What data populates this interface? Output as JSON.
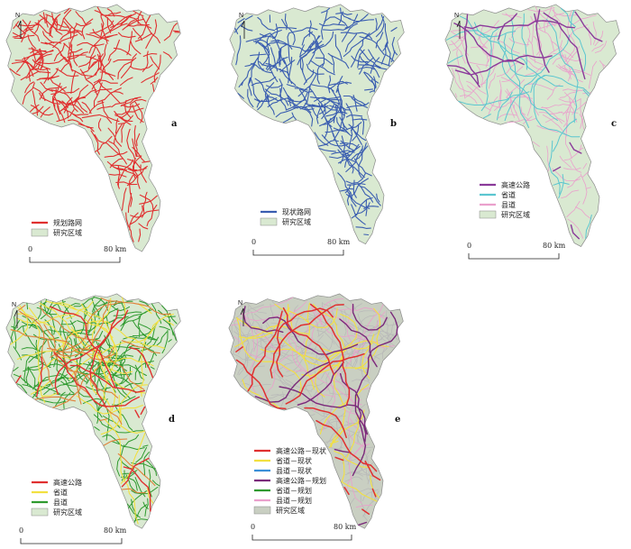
{
  "colors": {
    "region_fill": "#d9e9d1",
    "region_stroke": "#8c8c8c",
    "gray_region_fill": "#c9cfc2"
  },
  "panels": [
    {
      "id": "a",
      "letter": "a",
      "north": "N",
      "scale": {
        "zero": "0",
        "end": "80 km"
      },
      "legend": [
        {
          "kind": "line",
          "color": "#e03030",
          "label": "规划路网"
        },
        {
          "kind": "patch",
          "color": "#d9e9d1",
          "label": "研究区域"
        }
      ],
      "network": [
        {
          "color": "#e03030",
          "density": 1.0,
          "width": 1.1
        }
      ]
    },
    {
      "id": "b",
      "letter": "b",
      "north": "N",
      "scale": {
        "zero": "0",
        "end": "80 km"
      },
      "legend": [
        {
          "kind": "line",
          "color": "#3a5db0",
          "label": "现状路网"
        },
        {
          "kind": "patch",
          "color": "#d9e9d1",
          "label": "研究区域"
        }
      ],
      "network": [
        {
          "color": "#3a5db0",
          "density": 1.0,
          "width": 1.1
        }
      ]
    },
    {
      "id": "c",
      "letter": "c",
      "north": "N",
      "scale": {
        "zero": "0",
        "end": "80 km"
      },
      "legend": [
        {
          "kind": "line",
          "color": "#8a3a9a",
          "label": "高速公路"
        },
        {
          "kind": "line",
          "color": "#5bc6d0",
          "label": "省道"
        },
        {
          "kind": "line",
          "color": "#eaa0cc",
          "label": "县道"
        },
        {
          "kind": "patch",
          "color": "#d9e9d1",
          "label": "研究区域"
        }
      ],
      "network": [
        {
          "color": "#eaa0cc",
          "density": 0.55,
          "width": 0.8
        },
        {
          "color": "#5bc6d0",
          "density": 0.12,
          "width": 1.0
        },
        {
          "color": "#8a3a9a",
          "density": 0.06,
          "width": 1.4
        }
      ]
    },
    {
      "id": "d",
      "letter": "d",
      "north": "N",
      "scale": {
        "zero": "0",
        "end": "80 km"
      },
      "legend": [
        {
          "kind": "line",
          "color": "#e03030",
          "label": "高速公路"
        },
        {
          "kind": "line",
          "color": "#f2e040",
          "label": "省道"
        },
        {
          "kind": "line",
          "color": "#2f9a2f",
          "label": "县道"
        },
        {
          "kind": "patch",
          "color": "#d9e9d1",
          "label": "研究区域"
        }
      ],
      "network": [
        {
          "color": "#2f9a2f",
          "density": 0.85,
          "width": 1.0
        },
        {
          "color": "#f2e040",
          "density": 0.14,
          "width": 1.1
        },
        {
          "color": "#e0803a",
          "density": 0.06,
          "width": 1.1
        },
        {
          "color": "#e03030",
          "density": 0.06,
          "width": 1.4
        }
      ]
    },
    {
      "id": "e",
      "letter": "e",
      "north": "N",
      "scale": {
        "zero": "0",
        "end": "80 km"
      },
      "legend": [
        {
          "kind": "line",
          "color": "#e03030",
          "label": "高速公路－现状"
        },
        {
          "kind": "line",
          "color": "#f2e040",
          "label": "省道－现状"
        },
        {
          "kind": "line",
          "color": "#3a8fd8",
          "label": "县道－现状"
        },
        {
          "kind": "line",
          "color": "#7a2a7a",
          "label": "高速公路－规划"
        },
        {
          "kind": "line",
          "color": "#2f9a2f",
          "label": "省道－规划"
        },
        {
          "kind": "line",
          "color": "#eaa0cc",
          "label": "县道－规划"
        },
        {
          "kind": "patch",
          "color": "#c9cfc2",
          "label": "研究区域"
        }
      ],
      "network": [
        {
          "color": "#b8b8b8",
          "density": 0.8,
          "width": 0.7
        },
        {
          "color": "#eaa0cc",
          "density": 0.12,
          "width": 0.8
        },
        {
          "color": "#f2e040",
          "density": 0.1,
          "width": 1.1
        },
        {
          "color": "#7a2a7a",
          "density": 0.06,
          "width": 1.4
        },
        {
          "color": "#e03030",
          "density": 0.07,
          "width": 1.5
        }
      ]
    }
  ]
}
